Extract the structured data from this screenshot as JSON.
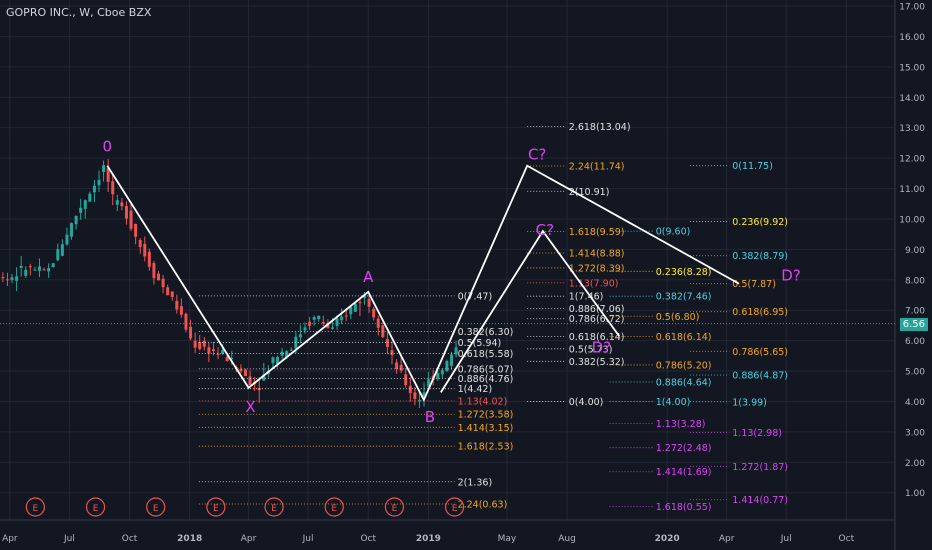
{
  "header": {
    "title": "GOPRO INC., W, Cboe BZX"
  },
  "price_tag": "6.56",
  "colors": {
    "bg": "#131722",
    "up": "#26a69a",
    "down": "#ef5350",
    "pattern": "#ffffff",
    "point_label": "#e040fb",
    "fib_white": "#e0e0e0",
    "fib_orange": "#f5a623",
    "fib_red": "#ef5350",
    "fib_yellow": "#ffeb3b",
    "fib_cyan": "#4dd0e1",
    "fib_magenta": "#e040fb",
    "axis_text": "#b2b5be",
    "current_line": "#26a69a"
  },
  "chart_data": {
    "type": "candlestick",
    "title": "GOPRO INC., W, Cboe BZX",
    "xlabel": "",
    "ylabel": "",
    "ylim": [
      0.4,
      17.0
    ],
    "grid": true,
    "current_price": 6.56,
    "y_ticks": [
      "17.00",
      "16.00",
      "15.00",
      "14.00",
      "13.00",
      "12.00",
      "11.00",
      "10.00",
      "9.00",
      "8.00",
      "7.00",
      "6.00",
      "5.00",
      "4.00",
      "3.00",
      "2.00",
      "1.00"
    ],
    "x_ticks": [
      "Apr",
      "Jul",
      "Oct",
      "2018",
      "Apr",
      "Jul",
      "Oct",
      "2019",
      "May",
      "Aug",
      "2020",
      "Apr",
      "Jul",
      "Oct"
    ],
    "price_path": [
      [
        "2017-01-01",
        8.3
      ],
      [
        "2017-02-05",
        8.8
      ],
      [
        "2017-03-05",
        8.4
      ],
      [
        "2017-04-01",
        8.0
      ],
      [
        "2017-05-01",
        8.4
      ],
      [
        "2017-06-01",
        8.2
      ],
      [
        "2017-07-01",
        9.5
      ],
      [
        "2017-07-25",
        10.5
      ],
      [
        "2017-08-15",
        11.2
      ],
      [
        "2017-08-28",
        11.75
      ],
      [
        "2017-09-10",
        10.6
      ],
      [
        "2017-10-01",
        10.2
      ],
      [
        "2017-10-20",
        9.2
      ],
      [
        "2017-11-15",
        8.1
      ],
      [
        "2017-12-15",
        7.2
      ],
      [
        "2018-01-10",
        5.9
      ],
      [
        "2018-02-05",
        5.7
      ],
      [
        "2018-03-01",
        5.5
      ],
      [
        "2018-04-05",
        4.75
      ],
      [
        "2018-04-20",
        4.5
      ],
      [
        "2018-05-15",
        5.5
      ],
      [
        "2018-06-10",
        5.8
      ],
      [
        "2018-07-01",
        6.5
      ],
      [
        "2018-07-20",
        6.8
      ],
      [
        "2018-08-10",
        6.3
      ],
      [
        "2018-09-01",
        6.9
      ],
      [
        "2018-09-20",
        7.3
      ],
      [
        "2018-10-01",
        7.47
      ],
      [
        "2018-10-20",
        6.7
      ],
      [
        "2018-11-10",
        5.4
      ],
      [
        "2018-12-10",
        4.3
      ],
      [
        "2018-12-20",
        4.0
      ],
      [
        "2019-01-10",
        4.8
      ],
      [
        "2019-02-01",
        5.2
      ],
      [
        "2019-02-15",
        5.7
      ]
    ],
    "events": [
      "E",
      "E",
      "E",
      "E",
      "E",
      "E",
      "E",
      "E",
      "E"
    ],
    "event_dates": [
      "2017-02-10",
      "2017-05-10",
      "2017-08-10",
      "2017-11-10",
      "2018-02-10",
      "2018-05-10",
      "2018-08-10",
      "2018-11-10",
      "2019-02-10"
    ],
    "pattern_points": [
      {
        "label": "0",
        "date": "2017-08-28",
        "price": 11.75
      },
      {
        "label": "X",
        "date": "2018-04-01",
        "price": 4.45
      },
      {
        "label": "A",
        "date": "2018-10-01",
        "price": 7.6
      },
      {
        "label": "B",
        "date": "2018-12-25",
        "price": 4.05
      },
      {
        "label": "C?",
        "date": "2019-06-01",
        "price": 11.75
      },
      {
        "label": "D?",
        "date": "2020-04-20",
        "price": 7.87
      }
    ],
    "alt_pattern": [
      {
        "label": "",
        "date": "2019-01-20",
        "price": 4.3
      },
      {
        "label": "C?",
        "date": "2019-06-25",
        "price": 9.6
      },
      {
        "label": "D?",
        "date": "2019-10-20",
        "price": 6.14
      }
    ],
    "fib_sets": [
      {
        "name": "xa",
        "x0": "2018-01-15",
        "x1": "2019-02-10",
        "color_key": "fib_white",
        "levels": [
          {
            "text": "0(7.47)",
            "value": 7.47
          },
          {
            "text": "0.382(6.30)",
            "value": 6.3
          },
          {
            "text": "0.5(5.94)",
            "value": 5.94
          },
          {
            "text": "0.618(5.58)",
            "value": 5.58
          },
          {
            "text": "0.786(5.07)",
            "value": 5.07
          },
          {
            "text": "0.886(4.76)",
            "value": 4.76
          },
          {
            "text": "1(4.42)",
            "value": 4.42
          },
          {
            "text": "1.13(4.02)",
            "value": 4.02,
            "color_key": "fib_red"
          },
          {
            "text": "1.272(3.58)",
            "value": 3.58,
            "color_key": "fib_orange"
          },
          {
            "text": "1.414(3.15)",
            "value": 3.15,
            "color_key": "fib_orange"
          },
          {
            "text": "1.618(2.53)",
            "value": 2.53,
            "color_key": "fib_orange"
          },
          {
            "text": "2(1.36)",
            "value": 1.36
          },
          {
            "text": "2.24(0.63)",
            "value": 0.63,
            "color_key": "fib_orange"
          }
        ]
      },
      {
        "name": "bc",
        "x0": "2019-06-01",
        "x1": "2019-07-30",
        "color_key": "fib_white",
        "levels": [
          {
            "text": "2.618(13.04)",
            "value": 13.04
          },
          {
            "text": "2.24(11.74)",
            "value": 11.74,
            "color_key": "fib_orange"
          },
          {
            "text": "2(10.91)",
            "value": 10.91
          },
          {
            "text": "1.618(9.59)",
            "value": 9.59,
            "color_key": "fib_orange"
          },
          {
            "text": "1.414(8.88)",
            "value": 8.88,
            "color_key": "fib_orange"
          },
          {
            "text": "1.272(8.39)",
            "value": 8.39,
            "color_key": "fib_orange"
          },
          {
            "text": "1.13(7.90)",
            "value": 7.9,
            "color_key": "fib_red"
          },
          {
            "text": "1(7.46)",
            "value": 7.46
          },
          {
            "text": "0.886(7.06)",
            "value": 7.06
          },
          {
            "text": "0.786(6.72)",
            "value": 6.72
          },
          {
            "text": "0.618(6.14)",
            "value": 6.14
          },
          {
            "text": "0.5(5.73)",
            "value": 5.73
          },
          {
            "text": "0.382(5.32)",
            "value": 5.32
          },
          {
            "text": "0(4.00)",
            "value": 4.0
          }
        ]
      },
      {
        "name": "cd_alt",
        "x0": "2019-10-05",
        "x1": "2019-12-10",
        "color_key": "fib_cyan",
        "levels": [
          {
            "text": "0(9.60)",
            "value": 9.6
          },
          {
            "text": "0.236(8.28)",
            "value": 8.28,
            "color_key": "fib_yellow"
          },
          {
            "text": "0.382(7.46)",
            "value": 7.46
          },
          {
            "text": "0.5(6.80)",
            "value": 6.8,
            "color_key": "fib_orange"
          },
          {
            "text": "0.618(6.14)",
            "value": 6.14,
            "color_key": "fib_orange"
          },
          {
            "text": "0.786(5.20)",
            "value": 5.2,
            "color_key": "fib_orange"
          },
          {
            "text": "0.886(4.64)",
            "value": 4.64
          },
          {
            "text": "1(4.00)",
            "value": 4.0
          },
          {
            "text": "1.13(3.28)",
            "value": 3.28,
            "color_key": "fib_magenta"
          },
          {
            "text": "1.272(2.48)",
            "value": 2.48,
            "color_key": "fib_magenta"
          },
          {
            "text": "1.414(1.69)",
            "value": 1.69,
            "color_key": "fib_magenta"
          },
          {
            "text": "1.618(0.55)",
            "value": 0.55,
            "color_key": "fib_magenta"
          }
        ]
      },
      {
        "name": "cd",
        "x0": "2020-02-05",
        "x1": "2020-04-05",
        "color_key": "fib_cyan",
        "levels": [
          {
            "text": "0(11.75)",
            "value": 11.75
          },
          {
            "text": "0.236(9.92)",
            "value": 9.92,
            "color_key": "fib_yellow"
          },
          {
            "text": "0.382(8.79)",
            "value": 8.79
          },
          {
            "text": "0.5(7.87)",
            "value": 7.87,
            "color_key": "fib_orange"
          },
          {
            "text": "0.618(6.95)",
            "value": 6.95,
            "color_key": "fib_orange"
          },
          {
            "text": "0.786(5.65)",
            "value": 5.65,
            "color_key": "fib_orange"
          },
          {
            "text": "0.886(4.87)",
            "value": 4.87
          },
          {
            "text": "1(3.99)",
            "value": 3.99
          },
          {
            "text": "1.13(2.98)",
            "value": 2.98,
            "color_key": "fib_magenta"
          },
          {
            "text": "1.272(1.87)",
            "value": 1.87,
            "color_key": "fib_magenta"
          },
          {
            "text": "1.414(0.77)",
            "value": 0.77,
            "color_key": "fib_magenta"
          }
        ]
      }
    ]
  }
}
